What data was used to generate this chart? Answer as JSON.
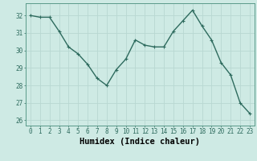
{
  "x": [
    0,
    1,
    2,
    3,
    4,
    5,
    6,
    7,
    8,
    9,
    10,
    11,
    12,
    13,
    14,
    15,
    16,
    17,
    18,
    19,
    20,
    21,
    22,
    23
  ],
  "y": [
    32.0,
    31.9,
    31.9,
    31.1,
    30.2,
    29.8,
    29.2,
    28.4,
    28.0,
    28.9,
    29.5,
    30.6,
    30.3,
    30.2,
    30.2,
    31.1,
    31.7,
    32.3,
    31.4,
    30.6,
    29.3,
    28.6,
    27.0,
    26.4
  ],
  "line_color": "#2e6b5e",
  "marker": "P",
  "marker_size": 2.5,
  "line_width": 1.0,
  "bg_color": "#ceeae4",
  "grid_color": "#b8d8d2",
  "xlabel": "Humidex (Indice chaleur)",
  "ylim": [
    25.7,
    32.7
  ],
  "xlim": [
    -0.5,
    23.5
  ],
  "yticks": [
    26,
    27,
    28,
    29,
    30,
    31,
    32
  ],
  "xticks": [
    0,
    1,
    2,
    3,
    4,
    5,
    6,
    7,
    8,
    9,
    10,
    11,
    12,
    13,
    14,
    15,
    16,
    17,
    18,
    19,
    20,
    21,
    22,
    23
  ],
  "tick_fontsize": 5.5,
  "xlabel_fontsize": 7.5
}
